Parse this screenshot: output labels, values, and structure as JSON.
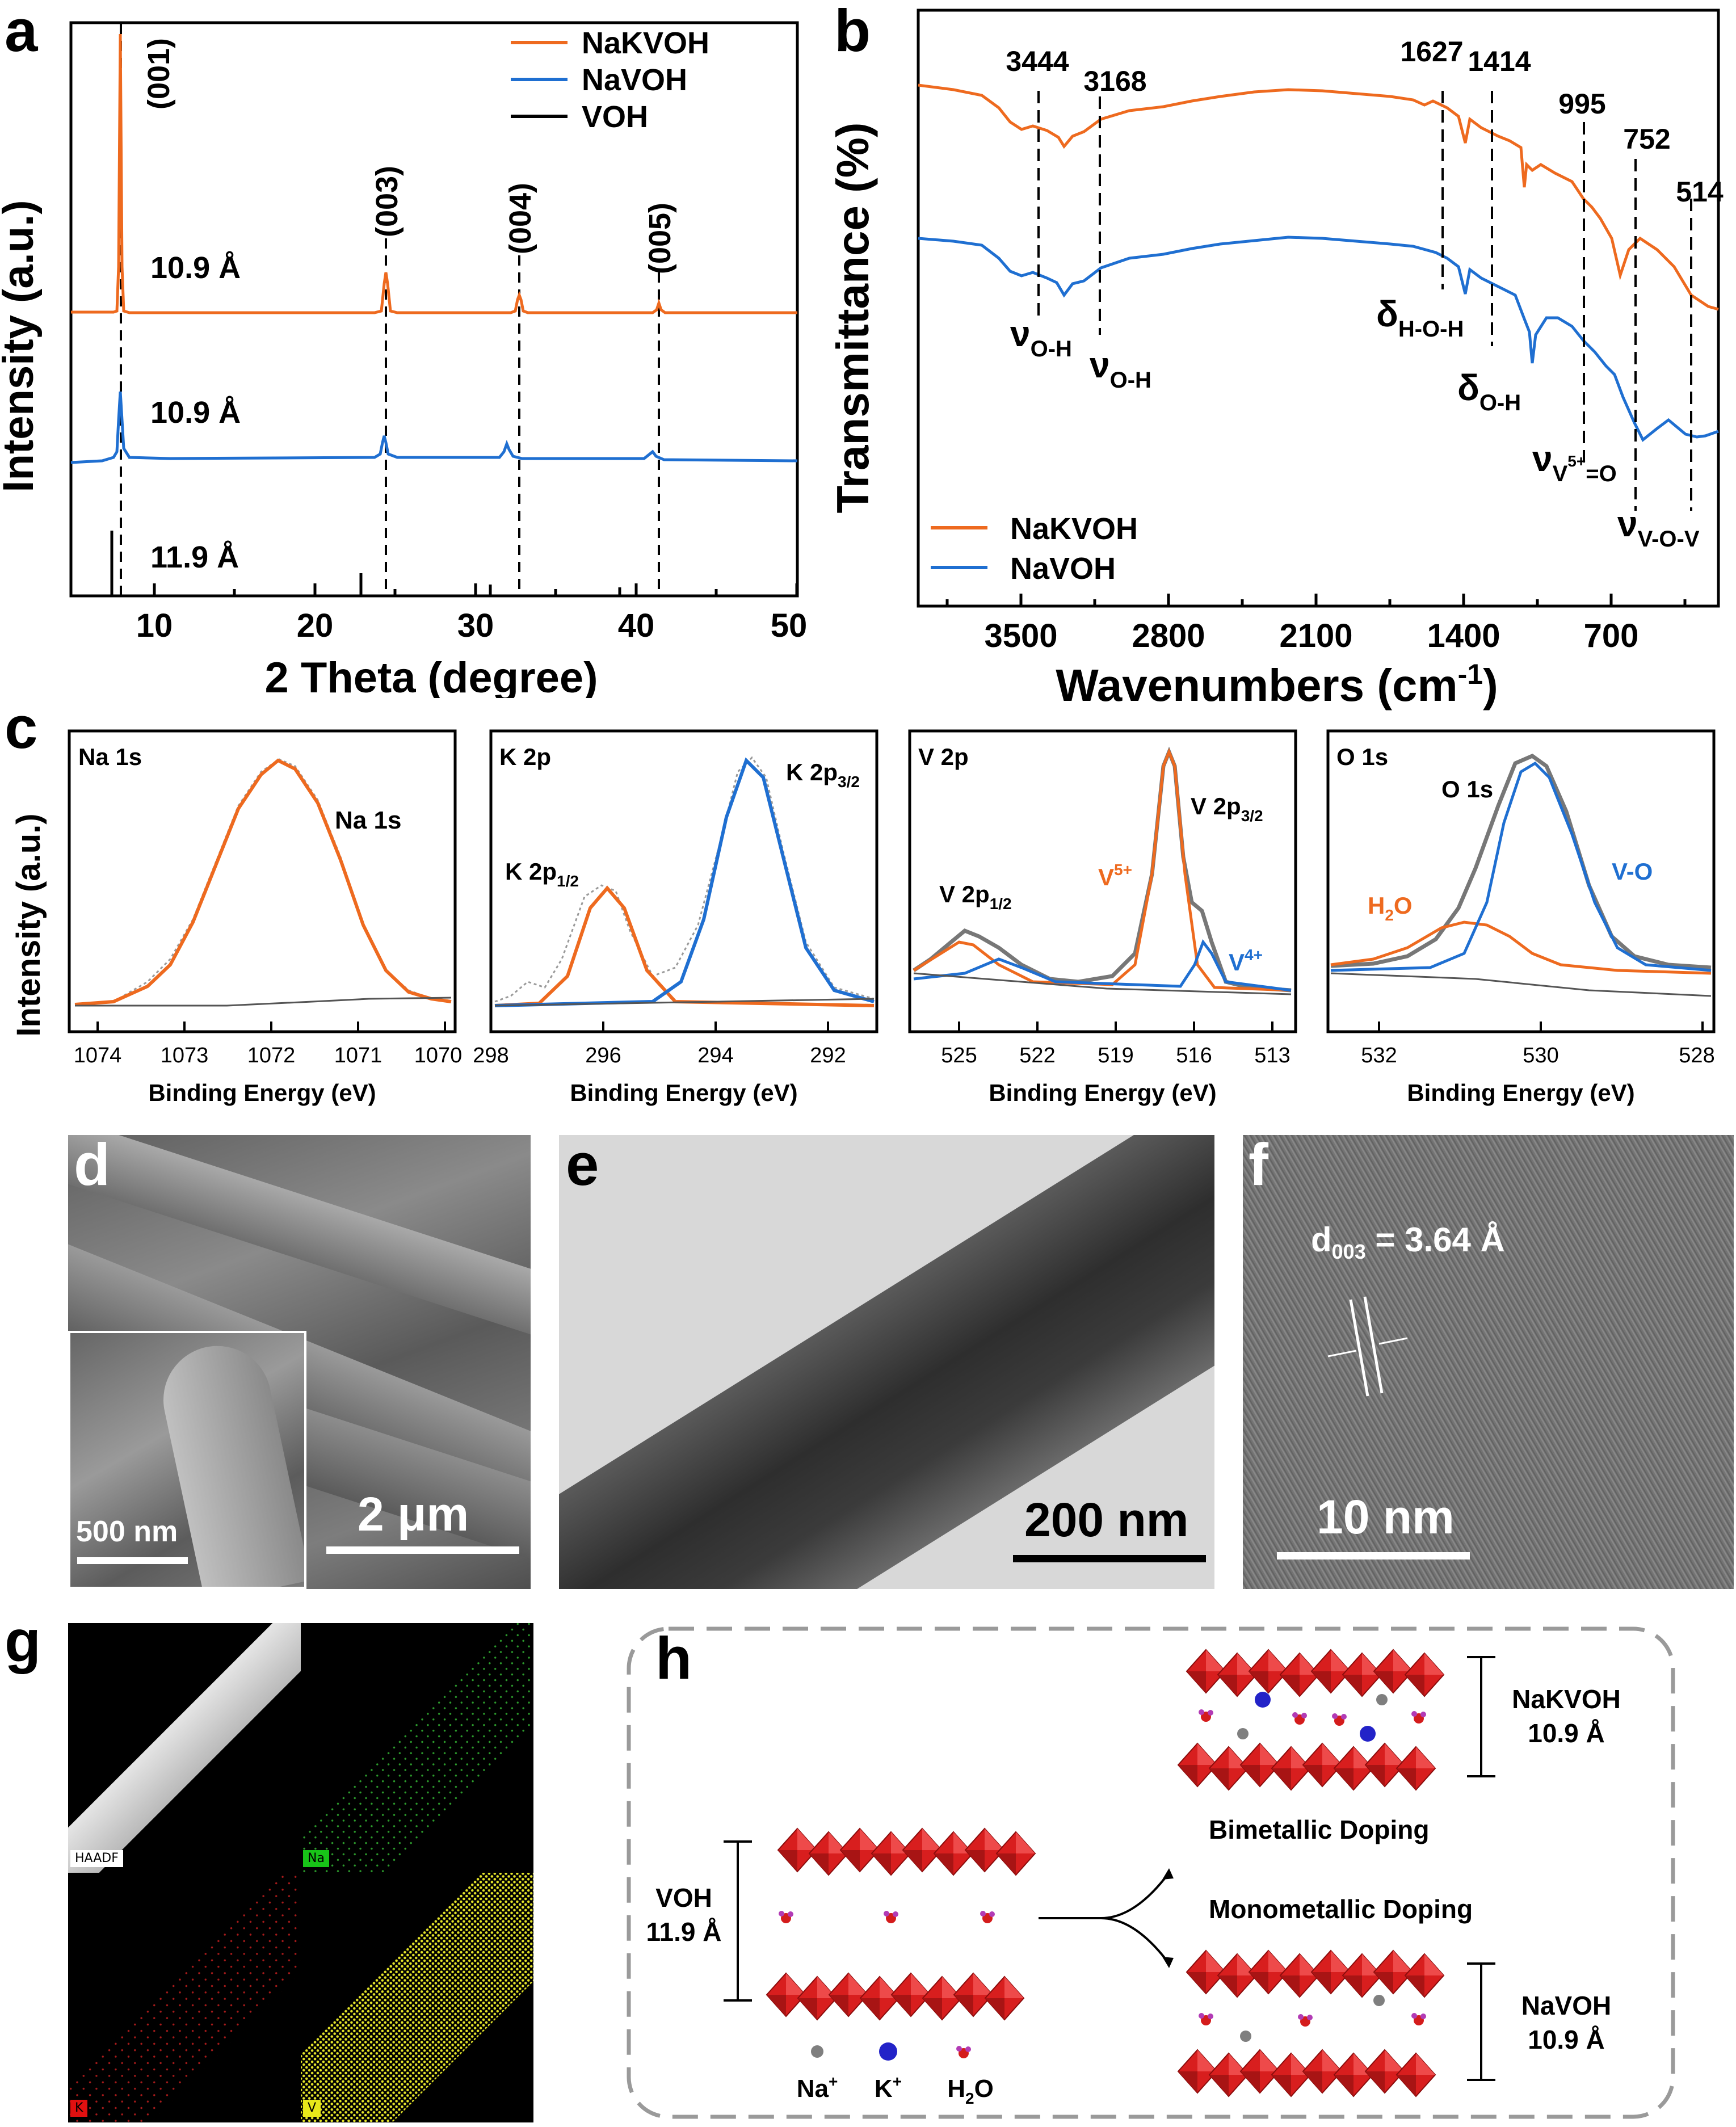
{
  "figure": {
    "panels": {
      "a": "a",
      "b": "b",
      "c": "c",
      "d": "d",
      "e": "e",
      "f": "f",
      "g": "g",
      "h": "h"
    },
    "colors": {
      "nakvoh": "#EE6A1F",
      "navoh": "#1F6FD1",
      "voh": "#000000",
      "fit_gray": "#9A9A9A",
      "struct_red": "#D81E1E",
      "na": "#7F7F7F",
      "k": "#2323C8",
      "h2o_o": "#D41C1C",
      "h2o_h": "#B23BB5"
    }
  },
  "xrd": {
    "ylabel": "Intensity (a.u.)",
    "xlabel": "2 Theta (degree)",
    "xticks": [
      "10",
      "20",
      "30",
      "40",
      "50"
    ],
    "legend": [
      "NaKVOH",
      "NaVOH",
      "VOH"
    ],
    "peak_labels": [
      "(001)",
      "(003)",
      "(004)",
      "(005)"
    ],
    "spacing_labels": [
      "10.9 Å",
      "10.9 Å",
      "11.9 Å"
    ]
  },
  "ftir": {
    "ylabel": "Transmittance (%)",
    "xlabel_main": "Wavenumbers (cm",
    "xlabel_sup": "-1",
    "xlabel_close": ")",
    "xticks": [
      "3500",
      "2800",
      "2100",
      "1400",
      "700"
    ],
    "peaks": [
      "3444",
      "3168",
      "1627",
      "1414",
      "995",
      "752",
      "514"
    ],
    "legend": [
      "NaKVOH",
      "NaVOH"
    ],
    "modes": {
      "oh1": {
        "sym": "ν",
        "sub": "O-H"
      },
      "oh2": {
        "sym": "ν",
        "sub": "O-H"
      },
      "hoh": {
        "sym": "δ",
        "sub": "H-O-H"
      },
      "doh": {
        "sym": "δ",
        "sub": "O-H"
      },
      "vo": {
        "sym": "ν",
        "sub": "V",
        "sup": "5+",
        "tail": "=O"
      },
      "vov": {
        "sym": "ν",
        "sub": "V-O-V"
      }
    }
  },
  "xps": {
    "ylabel": "Intensity (a.u.)",
    "xlabel": "Binding Energy (eV)",
    "na": {
      "title": "Na 1s",
      "peak": "Na 1s",
      "xticks": [
        "1074",
        "1073",
        "1072",
        "1071",
        "1070"
      ]
    },
    "k": {
      "title": "K 2p",
      "peak1_main": "K 2p",
      "peak1_sub": "1/2",
      "peak2_main": "K 2p",
      "peak2_sub": "3/2",
      "xticks": [
        "298",
        "296",
        "294",
        "292"
      ]
    },
    "v": {
      "title": "V 2p",
      "peak1_main": "V 2p",
      "peak1_sub": "1/2",
      "peak2_main": "V 2p",
      "peak2_sub": "3/2",
      "v5_main": "V",
      "v5_sup": "5+",
      "v4_main": "V",
      "v4_sup": "4+",
      "xticks": [
        "525",
        "522",
        "519",
        "516",
        "513"
      ]
    },
    "o": {
      "title": "O 1s",
      "peak": "O 1s",
      "h2o_main": "H",
      "h2o_sub": "2",
      "h2o_tail": "O",
      "vo": "V-O",
      "xticks": [
        "532",
        "530",
        "528"
      ]
    }
  },
  "sem": {
    "main_scale": "2 μm",
    "inset_scale": "500 nm"
  },
  "tem": {
    "scale": "200 nm"
  },
  "hrtem": {
    "scale": "10 nm",
    "d_main": "d",
    "d_sub": "003",
    "d_value": " = 3.64 Å"
  },
  "eds": {
    "tags": [
      "HAADF",
      "Na",
      "K",
      "V"
    ]
  },
  "schematic": {
    "voh_label": "VOH",
    "voh_d": "11.9 Å",
    "nakvoh_label": "NaKVOH",
    "nakvoh_d": "10.9 Å",
    "navoh_label": "NaVOH",
    "navoh_d": "10.9 Å",
    "bimetallic": "Bimetallic Doping",
    "monometallic": "Monometallic Doping",
    "legend_na_main": "Na",
    "legend_na_sup": "+",
    "legend_k_main": "K",
    "legend_k_sup": "+",
    "legend_h2o_main": "H",
    "legend_h2o_sub": "2",
    "legend_h2o_tail": "O"
  }
}
